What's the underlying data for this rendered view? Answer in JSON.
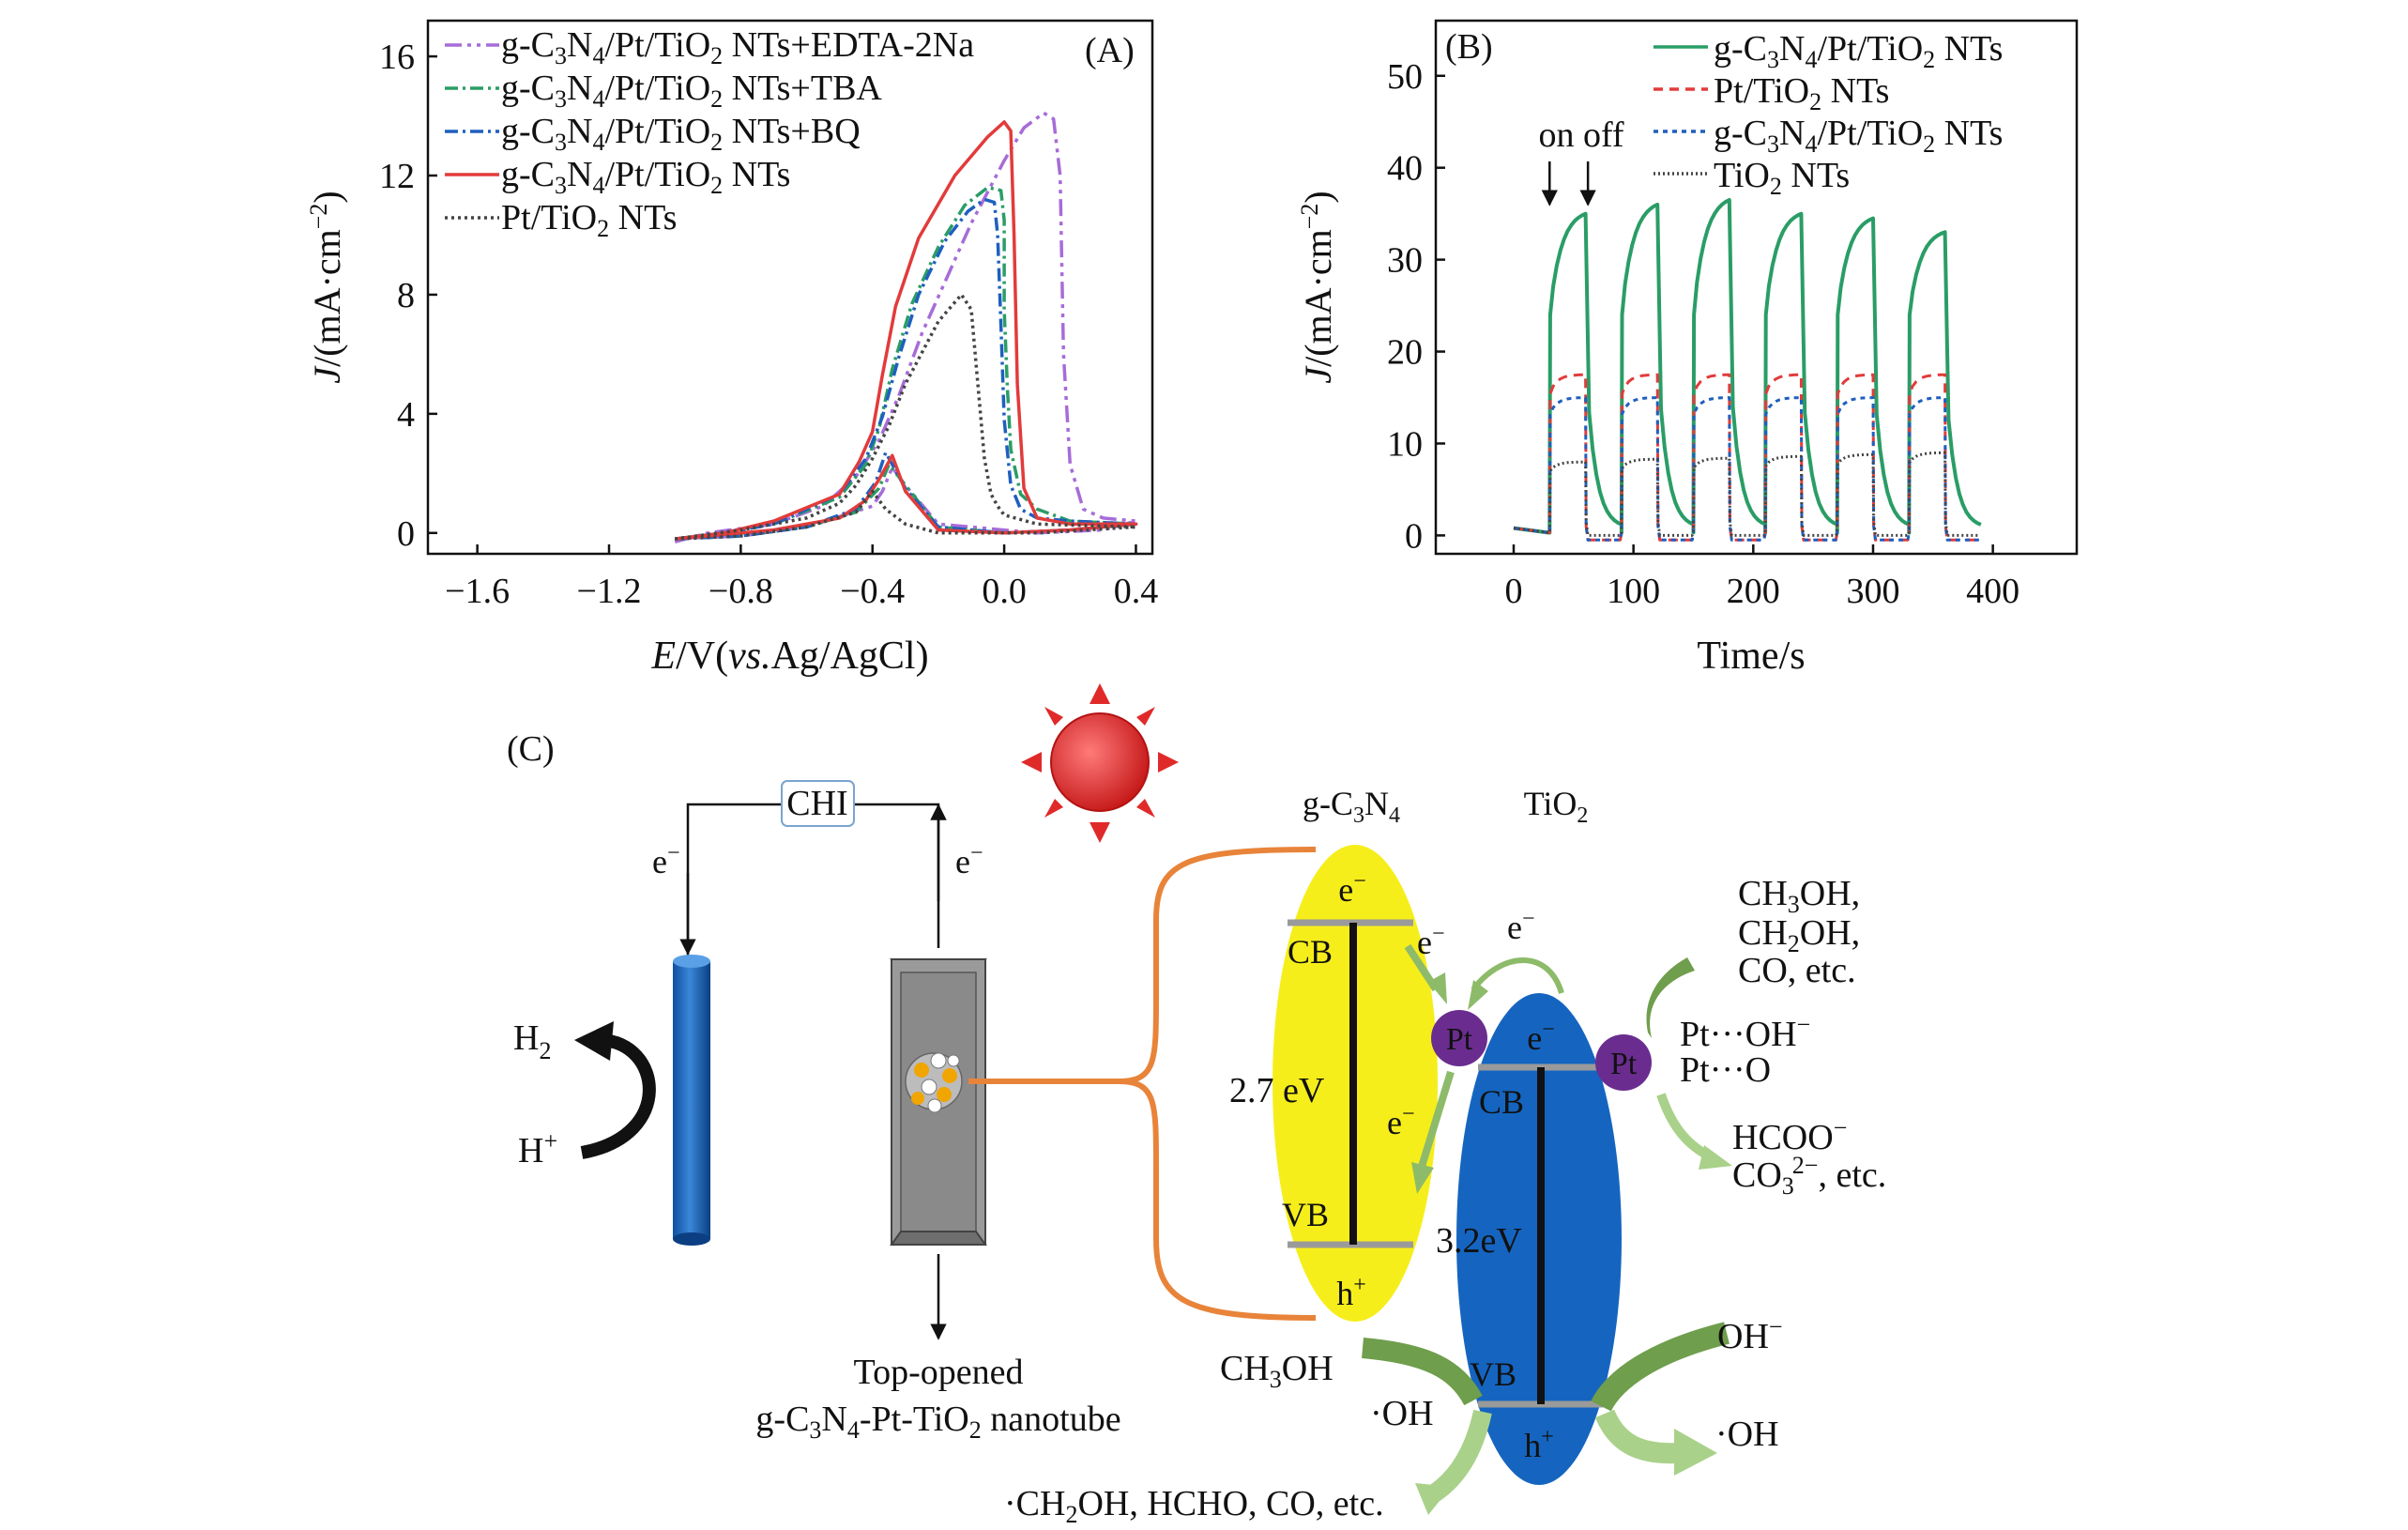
{
  "chart_data": [
    {
      "panel": "A",
      "type": "line",
      "panel_label": "(A)",
      "xlabel": "E/V(vs.Ag/AgCl)",
      "xlabel_parts": {
        "e": "E",
        "v": "/V(",
        "vs": "vs.",
        "ref": "Ag/AgCl)"
      },
      "ylabel": "J/(mA·cm⁻²)",
      "ylabel_parts": {
        "j": "J",
        "rest": "/(mA·cm",
        "sup": "−2",
        "close": ")"
      },
      "xlim": [
        -1.75,
        0.45
      ],
      "ylim": [
        -0.7,
        17.2
      ],
      "xticks": [
        -1.6,
        -1.2,
        -0.8,
        -0.4,
        0.0,
        0.4
      ],
      "xtick_labels": [
        "−1.6",
        "−1.2",
        "−0.8",
        "−0.4",
        "0.0",
        "0.4"
      ],
      "yticks": [
        0,
        4,
        8,
        12,
        16
      ],
      "ytick_labels": [
        "0",
        "4",
        "8",
        "12",
        "16"
      ],
      "legend_position": "top-left",
      "series": [
        {
          "name": "g-C3N4/Pt/TiO2 NTs+EDTA-2Na",
          "color": "#a76cd8",
          "dash": "18,6,4,6,4,6",
          "legend": {
            "pre": "g-C",
            "s1": "3",
            "m1": "N",
            "s2": "4",
            "m2": "/Pt/TiO",
            "s3": "2",
            "post": " NTs+EDTA-2Na"
          },
          "x": [
            -1.0,
            -0.9,
            -0.7,
            -0.55,
            -0.45,
            -0.38,
            -0.32,
            -0.25,
            -0.1,
            0.0,
            0.06,
            0.12,
            0.15,
            0.17,
            0.18,
            0.2,
            0.24,
            0.3,
            0.4,
            0.3,
            0.1,
            -0.2,
            -0.3,
            -0.34,
            -0.37,
            -0.4,
            -0.6,
            -0.8,
            -1.0,
            -1.0
          ],
          "y": [
            -0.3,
            0.0,
            0.3,
            0.9,
            1.9,
            3.1,
            4.6,
            6.7,
            10.4,
            12.5,
            13.6,
            14.1,
            13.9,
            12.0,
            6.0,
            2.3,
            0.8,
            0.5,
            0.4,
            0.1,
            0.0,
            0.3,
            1.6,
            2.2,
            1.4,
            0.9,
            0.2,
            -0.1,
            -0.2,
            -0.3
          ]
        },
        {
          "name": "g-C3N4/Pt/TiO2 NTs+TBA",
          "color": "#2a9d66",
          "dash": "14,5,3,5",
          "legend": {
            "pre": "g-C",
            "s1": "3",
            "m1": "N",
            "s2": "4",
            "m2": "/Pt/TiO",
            "s3": "2",
            "post": " NTs+TBA"
          },
          "x": [
            -1.0,
            -0.85,
            -0.7,
            -0.5,
            -0.42,
            -0.38,
            -0.34,
            -0.28,
            -0.2,
            -0.12,
            -0.05,
            -0.01,
            0.0,
            0.0,
            0.01,
            0.02,
            0.05,
            0.1,
            0.2,
            0.4,
            0.2,
            0.0,
            -0.2,
            -0.3,
            -0.35,
            -0.38,
            -0.45,
            -0.6,
            -0.8,
            -1.0
          ],
          "y": [
            -0.2,
            0.0,
            0.3,
            1.2,
            2.3,
            3.5,
            5.5,
            7.7,
            9.6,
            11.0,
            11.6,
            11.5,
            10.5,
            7.5,
            4.8,
            2.8,
            1.3,
            0.8,
            0.4,
            0.3,
            0.1,
            0.0,
            0.2,
            1.6,
            2.3,
            1.5,
            0.7,
            0.2,
            -0.1,
            -0.2
          ]
        },
        {
          "name": "g-C3N4/Pt/TiO2 NTs+BQ",
          "color": "#1f5fbf",
          "dash": "14,5,3,5",
          "legend": {
            "pre": "g-C",
            "s1": "3",
            "m1": "N",
            "s2": "4",
            "m2": "/Pt/TiO",
            "s3": "2",
            "post": " NTs+BQ"
          },
          "x": [
            -1.0,
            -0.85,
            -0.7,
            -0.5,
            -0.42,
            -0.37,
            -0.32,
            -0.26,
            -0.18,
            -0.11,
            -0.06,
            -0.03,
            -0.02,
            -0.01,
            0.0,
            0.02,
            0.05,
            0.1,
            0.2,
            0.4,
            0.2,
            0.0,
            -0.2,
            -0.3,
            -0.36,
            -0.39,
            -0.45,
            -0.6,
            -0.8,
            -1.0
          ],
          "y": [
            -0.2,
            0.0,
            0.3,
            1.3,
            2.5,
            3.9,
            5.9,
            8.0,
            9.8,
            10.8,
            11.2,
            11.1,
            10.0,
            7.0,
            3.8,
            1.6,
            0.8,
            0.5,
            0.4,
            0.3,
            0.1,
            0.0,
            0.2,
            1.5,
            2.7,
            1.7,
            0.8,
            0.2,
            -0.1,
            -0.2
          ]
        },
        {
          "name": "g-C3N4/Pt/TiO2 NTs",
          "color": "#e23b3b",
          "dash": "",
          "legend": {
            "pre": "g-C",
            "s1": "3",
            "m1": "N",
            "s2": "4",
            "m2": "/Pt/TiO",
            "s3": "2",
            "post": " NTs"
          },
          "x": [
            -1.0,
            -0.85,
            -0.7,
            -0.5,
            -0.44,
            -0.4,
            -0.37,
            -0.33,
            -0.26,
            -0.15,
            -0.05,
            0.0,
            0.02,
            0.03,
            0.04,
            0.06,
            0.1,
            0.2,
            0.4,
            0.2,
            0.0,
            -0.2,
            -0.3,
            -0.34,
            -0.38,
            -0.42,
            -0.5,
            -0.7,
            -0.9,
            -1.0
          ],
          "y": [
            -0.2,
            0.0,
            0.4,
            1.3,
            2.4,
            3.4,
            5.3,
            7.6,
            9.9,
            12.0,
            13.3,
            13.8,
            13.5,
            10.0,
            5.0,
            1.5,
            0.5,
            0.3,
            0.3,
            0.1,
            0.0,
            0.1,
            1.4,
            2.6,
            1.8,
            1.1,
            0.5,
            0.1,
            -0.1,
            -0.2
          ]
        },
        {
          "name": "Pt/TiO2 NTs",
          "color": "#444444",
          "dash": "3,4",
          "legend": {
            "pre": "Pt/TiO",
            "s1": "",
            "m1": "",
            "s2": "",
            "m2": "",
            "s3": "2",
            "post": " NTs"
          },
          "x": [
            -1.0,
            -0.8,
            -0.6,
            -0.5,
            -0.45,
            -0.4,
            -0.35,
            -0.3,
            -0.2,
            -0.13,
            -0.1,
            -0.08,
            -0.06,
            -0.04,
            -0.02,
            0.0,
            0.1,
            0.4,
            0.1,
            -0.2,
            -0.3,
            -0.36,
            -0.4,
            -0.45,
            -0.6,
            -0.8,
            -1.0
          ],
          "y": [
            -0.2,
            0.1,
            0.5,
            1.0,
            1.6,
            2.5,
            3.6,
            5.0,
            7.1,
            8.0,
            7.5,
            5.0,
            2.5,
            1.3,
            0.9,
            0.6,
            0.3,
            0.2,
            0.0,
            0.0,
            0.3,
            0.8,
            1.4,
            0.7,
            0.2,
            -0.1,
            -0.2
          ]
        }
      ]
    },
    {
      "panel": "B",
      "type": "line",
      "panel_label": "(B)",
      "xlabel": "Time/s",
      "ylabel": "J/(mA·cm⁻²)",
      "ylabel_parts": {
        "j": "J",
        "rest": "/(mA·cm",
        "sup": "−2",
        "close": ")"
      },
      "xlim": [
        -65,
        470
      ],
      "ylim": [
        -2,
        56
      ],
      "xticks": [
        0,
        100,
        200,
        300,
        400
      ],
      "xtick_labels": [
        "0",
        "100",
        "200",
        "300",
        "400"
      ],
      "yticks": [
        0,
        10,
        20,
        30,
        40,
        50
      ],
      "ytick_labels": [
        "0",
        "10",
        "20",
        "30",
        "40",
        "50"
      ],
      "legend_position": "top-right",
      "annotation": "on off",
      "annotation_arrows_x": [
        30,
        62
      ],
      "light_on_times": [
        30,
        90,
        150,
        210,
        270,
        330
      ],
      "light_period_s": 30,
      "series": [
        {
          "name": "g-C3N4/Pt/TiO2 NTs",
          "color": "#2a9d66",
          "dash": "",
          "plateaus": [
            35,
            36,
            36.5,
            35,
            34.5,
            33
          ],
          "legend": {
            "pre": "g-C",
            "s1": "3",
            "m1": "N",
            "s2": "4",
            "m2": "/Pt/TiO",
            "s3": "2",
            "post": " NTs"
          }
        },
        {
          "name": "Pt/TiO2 NTs",
          "color": "#e23b3b",
          "dash": "10,7",
          "plateaus": [
            17.5,
            17.5,
            17.5,
            17.5,
            17.5,
            17.5
          ],
          "legend": {
            "pre": "Pt/TiO",
            "s1": "",
            "m1": "",
            "s2": "",
            "m2": "",
            "s3": "2",
            "post": " NTs"
          }
        },
        {
          "name": "g-C3N4/Pt/TiO2 NTs",
          "color": "#1f5fbf",
          "dash": "5,5",
          "plateaus": [
            15,
            15,
            15,
            15,
            15,
            15
          ],
          "legend": {
            "pre": "g-C",
            "s1": "3",
            "m1": "N",
            "s2": "4",
            "m2": "/Pt/TiO",
            "s3": "2",
            "post": " NTs"
          }
        },
        {
          "name": "TiO2 NTs",
          "color": "#444444",
          "dash": "2,3",
          "plateaus": [
            8,
            8.3,
            8.4,
            8.6,
            8.8,
            9
          ],
          "legend": {
            "pre": "TiO",
            "s1": "",
            "m1": "",
            "s2": "",
            "m2": "",
            "s3": "2",
            "post": " NTs"
          }
        }
      ]
    }
  ],
  "diagram_c": {
    "panel_label": "(C)",
    "chi": "CHI",
    "e_minus": "e",
    "minus": "−",
    "h2": {
      "a": "H",
      "b": "2"
    },
    "hplus": {
      "a": "H",
      "b": "+"
    },
    "nanotube_caption": [
      "Top-opened",
      "g-C",
      "3",
      "N",
      "4",
      "-Pt-TiO",
      "2",
      " nanotube"
    ],
    "gc3n4_header": [
      "g-C",
      "3",
      "N",
      "4"
    ],
    "tio2_header": [
      "TiO",
      "2"
    ],
    "cb": "CB",
    "vb": "VB",
    "gap_gc3n4": "2.7 eV",
    "gap_tio2": "3.2eV",
    "pt": "Pt",
    "hplus_hole": {
      "a": "h",
      "b": "+"
    },
    "products_right_top": [
      [
        "CH",
        "3",
        "OH,"
      ],
      [
        "CH",
        "2",
        "OH,"
      ],
      [
        "CO, etc."
      ]
    ],
    "pt_oh": [
      "Pt···OH",
      "−"
    ],
    "pt_o": "Pt···O",
    "hcoo": [
      "HCOO",
      "−"
    ],
    "co3": [
      "CO",
      "3",
      "2−",
      ", etc."
    ],
    "oh_minus": [
      "OH",
      "−"
    ],
    "oh_radical_right": "·OH",
    "ch3oh_left": [
      "CH",
      "3",
      "OH"
    ],
    "oh_radical_left": "·OH",
    "bottom_products": [
      "·CH",
      "2",
      "OH, HCHO, CO, etc."
    ],
    "colors": {
      "gc3n4": "#f6ee1b",
      "tio2": "#1565c0",
      "pt": "#6a2d8f",
      "wire": "#e8843a",
      "arrow": "#8dbb6a",
      "sun": "#e02a2a"
    }
  }
}
